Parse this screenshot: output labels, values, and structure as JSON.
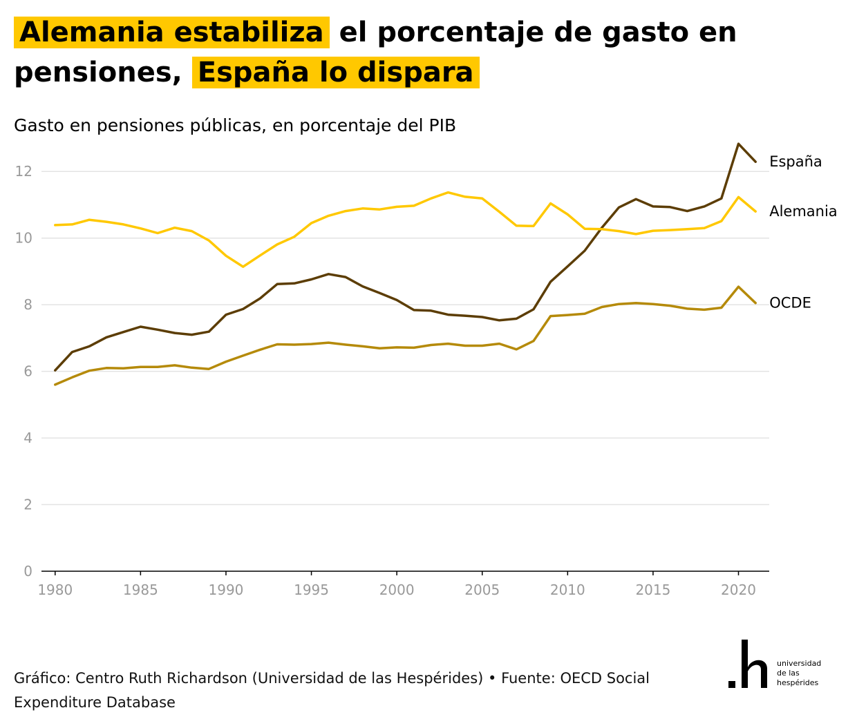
{
  "title": {
    "part1": "Alemania estabiliza",
    "part2": " el porcentaje de gasto en pensiones, ",
    "part3": "España lo dispara"
  },
  "subtitle": "Gasto en pensiones públicas, en porcentaje del PIB",
  "footer": "Gráfico: Centro Ruth Richardson (Universidad de las Hespérides) • Fuente: OECD Social Expenditure Database",
  "logo": {
    "mark": ".h",
    "text_line1": "universidad",
    "text_line2": "de las",
    "text_line3": "hespérides"
  },
  "colors": {
    "highlight": "#ffc800",
    "espana": "#5c3d05",
    "alemania": "#ffc800",
    "ocde": "#b58a0a",
    "grid": "#e3e3e3",
    "axis": "#000000",
    "tick_text": "#999999"
  },
  "chart_data": {
    "type": "line",
    "x": [
      1980,
      1981,
      1982,
      1983,
      1984,
      1985,
      1986,
      1987,
      1988,
      1989,
      1990,
      1991,
      1992,
      1993,
      1994,
      1995,
      1996,
      1997,
      1998,
      1999,
      2000,
      2001,
      2002,
      2003,
      2004,
      2005,
      2006,
      2007,
      2008,
      2009,
      2010,
      2011,
      2012,
      2013,
      2014,
      2015,
      2016,
      2017,
      2018,
      2019,
      2020,
      2021
    ],
    "x_ticks": [
      1980,
      1985,
      1990,
      1995,
      2000,
      2005,
      2010,
      2015,
      2020
    ],
    "y_ticks": [
      0,
      2,
      4,
      6,
      8,
      10,
      12
    ],
    "ylim": [
      0,
      13
    ],
    "xlim": [
      1979.2,
      2021.8
    ],
    "grid": "horizontal",
    "legend": "direct labels at line ends",
    "series": [
      {
        "name": "España",
        "color_key": "espana",
        "values": [
          6.03,
          6.58,
          6.75,
          7.02,
          7.18,
          7.34,
          7.25,
          7.15,
          7.1,
          7.19,
          7.7,
          7.87,
          8.19,
          8.62,
          8.64,
          8.76,
          8.92,
          8.83,
          8.55,
          8.35,
          8.14,
          7.84,
          7.82,
          7.7,
          7.67,
          7.63,
          7.53,
          7.58,
          7.86,
          8.69,
          9.15,
          9.62,
          10.31,
          10.92,
          11.17,
          10.95,
          10.93,
          10.81,
          10.95,
          11.19,
          12.83,
          12.29
        ]
      },
      {
        "name": "Alemania",
        "color_key": "alemania",
        "values": [
          10.39,
          10.41,
          10.55,
          10.49,
          10.41,
          10.29,
          10.15,
          10.31,
          10.21,
          9.93,
          9.47,
          9.14,
          9.48,
          9.81,
          10.04,
          10.45,
          10.67,
          10.81,
          10.89,
          10.86,
          10.94,
          10.97,
          11.19,
          11.37,
          11.24,
          11.19,
          10.79,
          10.37,
          10.36,
          11.04,
          10.71,
          10.28,
          10.27,
          10.21,
          10.12,
          10.22,
          10.24,
          10.27,
          10.3,
          10.51,
          11.23,
          10.8
        ]
      },
      {
        "name": "OCDE",
        "color_key": "ocde",
        "values": [
          5.6,
          5.82,
          6.02,
          6.1,
          6.09,
          6.13,
          6.13,
          6.18,
          6.11,
          6.07,
          6.29,
          6.47,
          6.65,
          6.81,
          6.8,
          6.82,
          6.86,
          6.8,
          6.75,
          6.69,
          6.72,
          6.71,
          6.79,
          6.83,
          6.77,
          6.77,
          6.83,
          6.66,
          6.91,
          7.66,
          7.69,
          7.73,
          7.93,
          8.02,
          8.05,
          8.02,
          7.97,
          7.88,
          7.85,
          7.91,
          8.54,
          8.05
        ]
      }
    ]
  }
}
